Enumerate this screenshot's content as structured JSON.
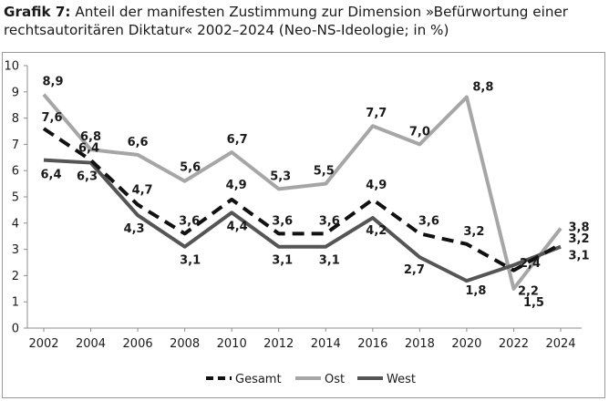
{
  "title": {
    "prefix": "Grafik 7:",
    "text": "Anteil der manifesten Zustimmung zur Dimension »Befürwortung einer rechtsautoritären Diktatur« 2002–2024 (Neo-NS-Ideologie; in %)"
  },
  "chart_data": {
    "type": "line",
    "x": [
      "2002",
      "2004",
      "2006",
      "2008",
      "2010",
      "2012",
      "2014",
      "2016",
      "2018",
      "2020",
      "2022",
      "2024"
    ],
    "ylim": [
      0,
      10
    ],
    "yticks": [
      0,
      1,
      2,
      3,
      4,
      5,
      6,
      7,
      8,
      9,
      10
    ],
    "grid": false,
    "legend": "bottom-center",
    "series": [
      {
        "name": "Gesamt",
        "style": "dashed",
        "color": "#111111",
        "values": [
          7.6,
          6.4,
          4.7,
          3.6,
          4.9,
          3.6,
          3.6,
          4.9,
          3.6,
          3.2,
          2.2,
          3.2
        ],
        "labels": [
          "7,6",
          "6,4",
          "4,7",
          "3,6",
          "4,9",
          "3,6",
          "3,6",
          "4,9",
          "3,6",
          "3,2",
          "2,2",
          "3,2"
        ]
      },
      {
        "name": "Ost",
        "style": "solid",
        "color": "#a6a6a6",
        "values": [
          8.9,
          6.8,
          6.6,
          5.6,
          6.7,
          5.3,
          5.5,
          7.7,
          7.0,
          8.8,
          1.5,
          3.8
        ],
        "labels": [
          "8,9",
          "6,8",
          "6,6",
          "5,6",
          "6,7",
          "5,3",
          "5,5",
          "7,7",
          "7,0",
          "8,8",
          "1,5",
          "3,8"
        ]
      },
      {
        "name": "West",
        "style": "solid",
        "color": "#555555",
        "values": [
          6.4,
          6.3,
          4.3,
          3.1,
          4.4,
          3.1,
          3.1,
          4.2,
          2.7,
          1.8,
          2.4,
          3.1
        ],
        "labels": [
          "6,4",
          "6,3",
          "4,3",
          "3,1",
          "4,4",
          "3,1",
          "3,1",
          "4,2",
          "2,7",
          "1,8",
          "2,4",
          "3,1"
        ]
      }
    ]
  }
}
